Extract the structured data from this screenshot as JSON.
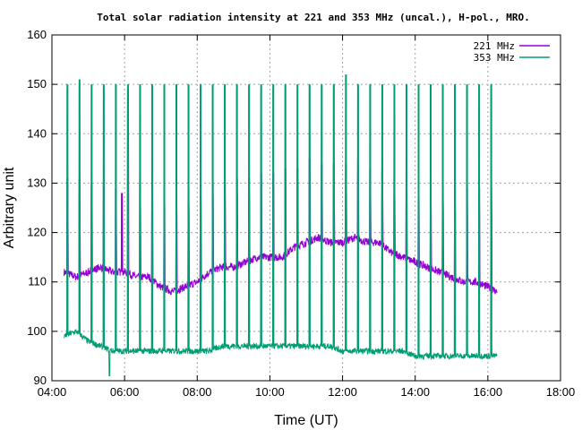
{
  "chart_data": {
    "type": "line",
    "title": "Total solar radiation intensity at 221 and 353 MHz (uncal.), H-pol., MRO.",
    "xlabel": "Time (UT)",
    "ylabel": "Arbitrary unit",
    "xlim": [
      "04:00",
      "18:00"
    ],
    "ylim": [
      90,
      160
    ],
    "x_ticks": [
      "04:00",
      "06:00",
      "08:00",
      "10:00",
      "12:00",
      "14:00",
      "16:00",
      "18:00"
    ],
    "y_ticks": [
      90,
      100,
      110,
      120,
      130,
      140,
      150,
      160
    ],
    "grid": true,
    "legend_position": "top-right",
    "series": [
      {
        "name": "221 MHz",
        "color": "#9400d3",
        "baseline": {
          "x": [
            "04:20",
            "04:40",
            "05:00",
            "05:20",
            "05:40",
            "06:00",
            "06:20",
            "06:40",
            "07:00",
            "07:20",
            "07:40",
            "08:00",
            "08:20",
            "08:40",
            "09:00",
            "09:20",
            "09:40",
            "10:00",
            "10:20",
            "10:40",
            "11:00",
            "11:20",
            "11:40",
            "12:00",
            "12:20",
            "12:40",
            "13:00",
            "13:20",
            "13:40",
            "14:00",
            "14:20",
            "14:40",
            "15:00",
            "15:20",
            "15:40",
            "16:00",
            "16:15"
          ],
          "y": [
            112,
            111,
            112,
            113,
            112,
            112,
            111,
            111,
            109,
            108,
            109,
            110,
            112,
            113,
            113,
            114,
            115,
            115,
            115,
            117,
            118,
            119,
            118,
            118,
            119,
            118,
            118,
            116,
            115,
            114,
            113,
            112,
            111,
            110,
            110,
            109,
            108
          ]
        },
        "spike_peaks": {
          "x": [
            "04:25",
            "04:45",
            "05:05",
            "05:25",
            "05:45",
            "05:55",
            "06:05",
            "06:25",
            "06:45",
            "07:05",
            "07:25",
            "07:45",
            "08:05",
            "08:25",
            "08:45",
            "09:05",
            "09:25",
            "09:45",
            "10:05",
            "10:25",
            "10:45",
            "11:05",
            "11:25",
            "11:45",
            "12:05",
            "12:25",
            "12:45",
            "13:05",
            "13:25",
            "13:45",
            "14:05",
            "14:25",
            "14:45",
            "15:05",
            "15:25",
            "15:45",
            "16:05"
          ],
          "y": [
            131,
            131,
            130,
            130,
            129,
            128,
            149,
            130,
            130,
            129,
            128,
            129,
            130,
            130,
            130,
            131,
            131,
            132,
            132,
            133,
            133,
            135,
            134,
            134,
            134,
            134,
            133,
            133,
            132,
            132,
            131,
            130,
            130,
            129,
            129,
            129,
            129
          ]
        }
      },
      {
        "name": "353 MHz",
        "color": "#009e73",
        "baseline": {
          "x": [
            "04:20",
            "04:40",
            "05:00",
            "05:20",
            "05:40",
            "06:00",
            "06:20",
            "06:40",
            "07:00",
            "07:20",
            "07:40",
            "08:00",
            "08:20",
            "08:40",
            "09:00",
            "09:20",
            "09:40",
            "10:00",
            "10:20",
            "10:40",
            "11:00",
            "11:20",
            "11:40",
            "12:00",
            "12:20",
            "12:40",
            "13:00",
            "13:20",
            "13:40",
            "14:00",
            "14:20",
            "14:40",
            "15:00",
            "15:20",
            "15:40",
            "16:00",
            "16:15"
          ],
          "y": [
            99,
            100,
            98,
            97,
            96,
            96,
            96,
            96,
            96,
            96,
            96,
            96,
            96,
            97,
            97,
            97,
            97,
            97,
            97,
            97,
            97,
            97,
            97,
            96,
            96,
            96,
            96,
            96,
            96,
            95,
            95,
            95,
            95,
            95,
            95,
            95,
            95
          ]
        },
        "spike_peaks": {
          "x": [
            "04:25",
            "04:45",
            "05:05",
            "05:25",
            "05:45",
            "06:05",
            "06:25",
            "06:45",
            "07:05",
            "07:25",
            "07:45",
            "08:05",
            "08:25",
            "08:45",
            "09:05",
            "09:25",
            "09:45",
            "10:05",
            "10:25",
            "10:45",
            "11:05",
            "11:25",
            "11:45",
            "12:05",
            "12:25",
            "12:45",
            "13:05",
            "13:25",
            "13:45",
            "14:05",
            "14:25",
            "14:45",
            "15:05",
            "15:25",
            "15:45",
            "16:05"
          ],
          "y": [
            150,
            151,
            150,
            150,
            150,
            150,
            150,
            150,
            150,
            150,
            150,
            150,
            150,
            150,
            150,
            150,
            150,
            150,
            150,
            150,
            150,
            150,
            150,
            152,
            150,
            150,
            150,
            150,
            150,
            150,
            150,
            150,
            150,
            150,
            150,
            150
          ]
        },
        "dips": {
          "x": [
            "05:35"
          ],
          "y": [
            91
          ]
        }
      }
    ]
  }
}
